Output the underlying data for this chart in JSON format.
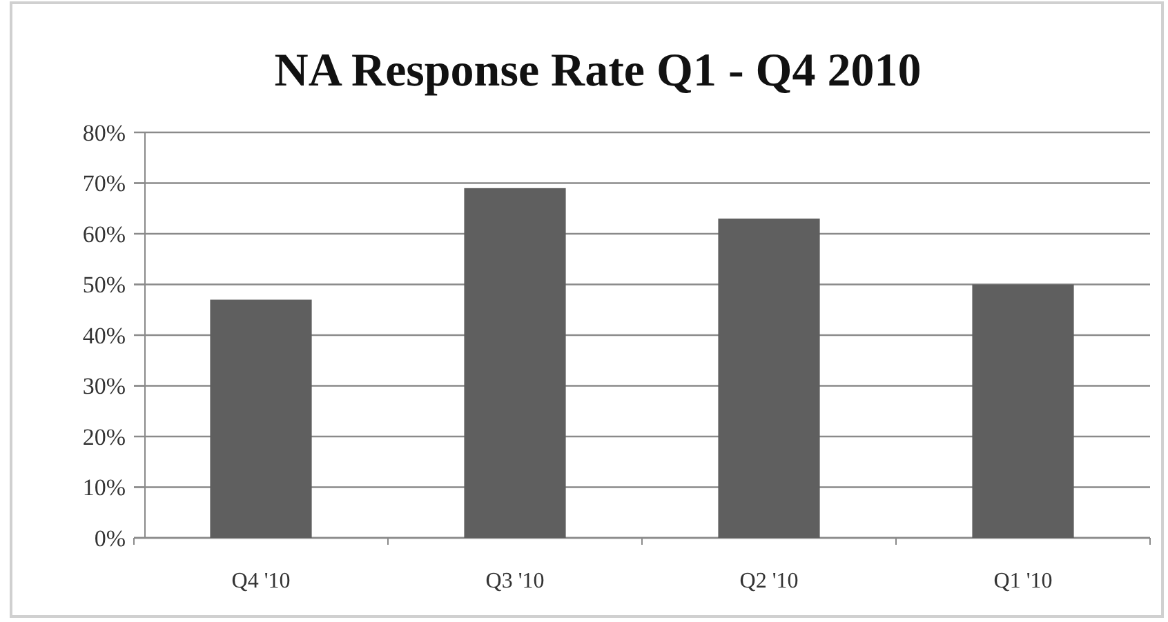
{
  "chart_data": {
    "type": "bar",
    "title": "NA Response Rate Q1 - Q4 2010",
    "categories": [
      "Q4 '10",
      "Q3 '10",
      "Q2 '10",
      "Q1 '10"
    ],
    "values": [
      47,
      69,
      63,
      50
    ],
    "color": "#5f5f5f",
    "ylim": [
      0,
      80
    ],
    "yticks": [
      {
        "value": 0,
        "label": "0%"
      },
      {
        "value": 10,
        "label": "10%"
      },
      {
        "value": 20,
        "label": "20%"
      },
      {
        "value": 30,
        "label": "30%"
      },
      {
        "value": 40,
        "label": "40%"
      },
      {
        "value": 50,
        "label": "50%"
      },
      {
        "value": 60,
        "label": "60%"
      },
      {
        "value": 70,
        "label": "70%"
      },
      {
        "value": 80,
        "label": "80%"
      }
    ],
    "grid": "y"
  }
}
